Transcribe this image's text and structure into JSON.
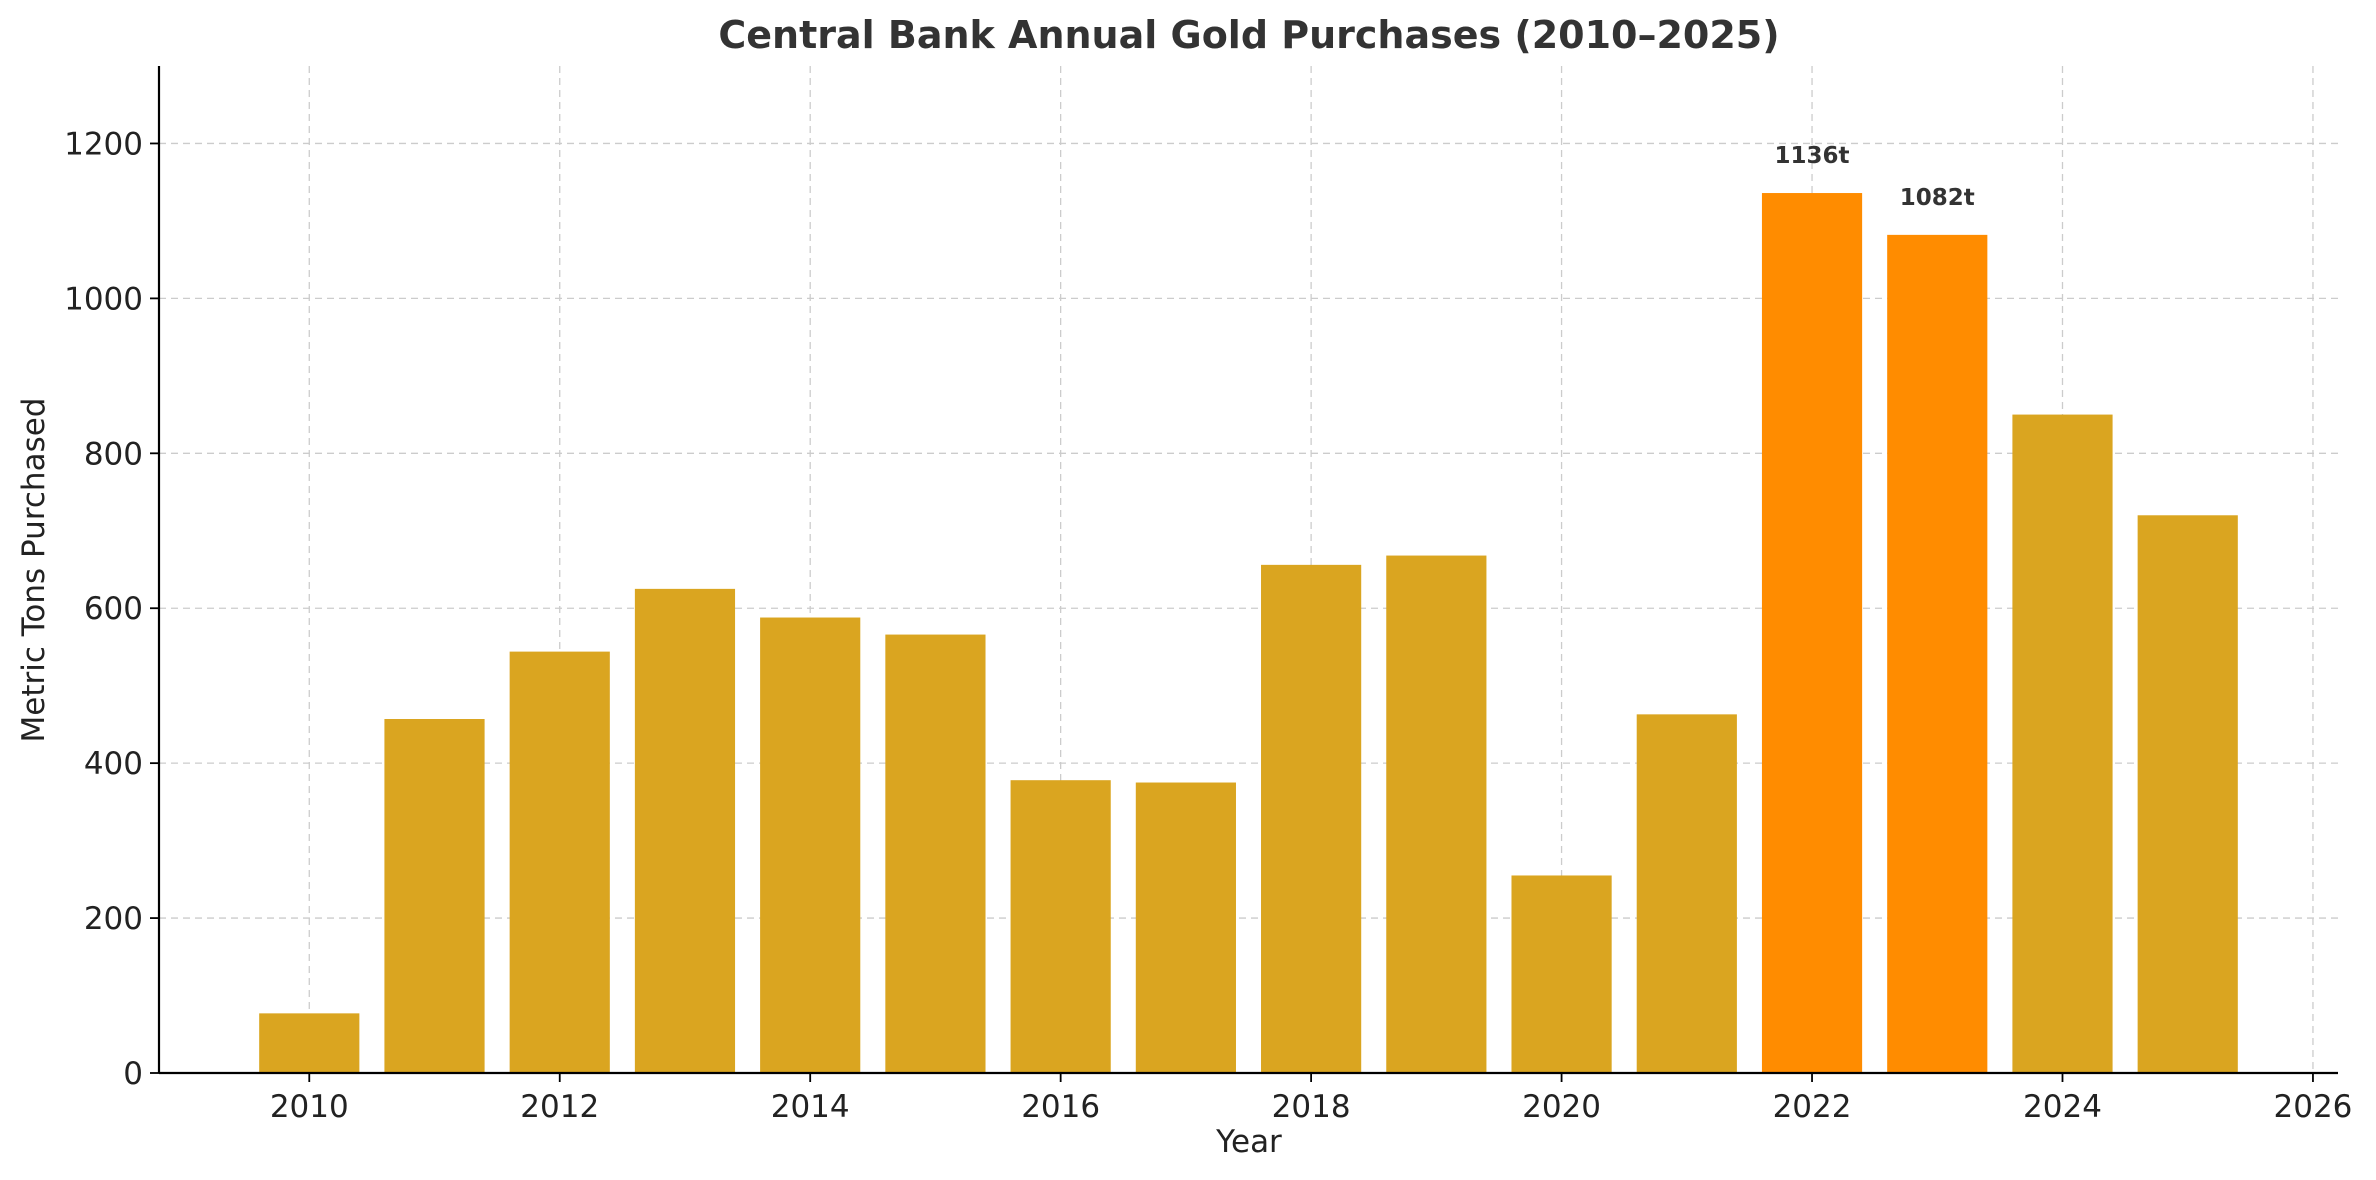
{
  "chart_data": {
    "type": "bar",
    "title": "Central Bank Annual Gold Purchases (2010–2025)",
    "xlabel": "Year",
    "ylabel": "Metric Tons Purchased",
    "x": [
      2010,
      2011,
      2012,
      2013,
      2014,
      2015,
      2016,
      2017,
      2018,
      2019,
      2020,
      2021,
      2022,
      2023,
      2024,
      2025
    ],
    "values": [
      77,
      457,
      544,
      625,
      588,
      566,
      378,
      375,
      656,
      668,
      255,
      463,
      1136,
      1082,
      850,
      720
    ],
    "highlighted_years": [
      2022,
      2023
    ],
    "annotations": [
      {
        "x": 2022,
        "value": 1136,
        "label": "1136t"
      },
      {
        "x": 2023,
        "value": 1082,
        "label": "1082t"
      }
    ],
    "xlim": [
      2008.8,
      2026.2
    ],
    "ylim": [
      0,
      1300
    ],
    "xticks": [
      2010,
      2012,
      2014,
      2016,
      2018,
      2020,
      2022,
      2024,
      2026
    ],
    "yticks": [
      0,
      200,
      400,
      600,
      800,
      1000,
      1200
    ],
    "grid": true,
    "colors": {
      "bar": "#DAA520",
      "highlight": "#FF8C00",
      "grid": "#cccccc",
      "title": "#333333"
    }
  }
}
